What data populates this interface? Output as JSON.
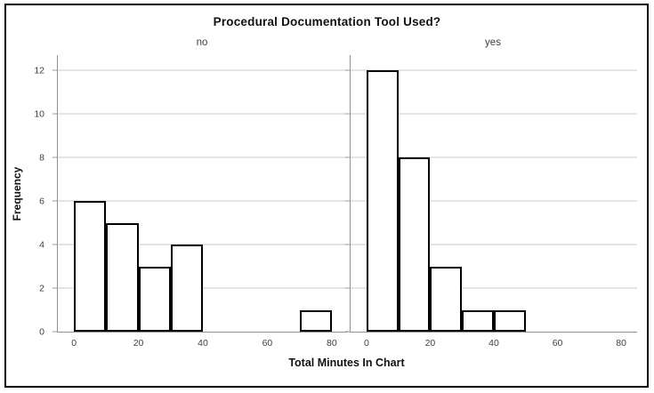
{
  "chart_data": {
    "type": "bar",
    "chart_kind": "faceted-histogram",
    "title": "Procedural Documentation Tool Used?",
    "xlabel": "Total Minutes In Chart",
    "ylabel": "Frequency",
    "x_ticks": [
      0,
      20,
      40,
      60,
      80
    ],
    "y_ticks": [
      0,
      2,
      4,
      6,
      8,
      10,
      12
    ],
    "xlim": [
      -5,
      85
    ],
    "ylim": [
      0,
      12.7
    ],
    "bin_width": 10,
    "grid": "horizontal",
    "legend_position": "none",
    "panels": [
      {
        "label": "no",
        "bars": [
          {
            "x0": 0,
            "x1": 10,
            "count": 6
          },
          {
            "x0": 10,
            "x1": 20,
            "count": 5
          },
          {
            "x0": 20,
            "x1": 30,
            "count": 3
          },
          {
            "x0": 30,
            "x1": 40,
            "count": 4
          },
          {
            "x0": 70,
            "x1": 80,
            "count": 1
          }
        ]
      },
      {
        "label": "yes",
        "bars": [
          {
            "x0": 0,
            "x1": 10,
            "count": 12
          },
          {
            "x0": 10,
            "x1": 20,
            "count": 8
          },
          {
            "x0": 20,
            "x1": 30,
            "count": 3
          },
          {
            "x0": 30,
            "x1": 40,
            "count": 1
          },
          {
            "x0": 40,
            "x1": 50,
            "count": 1
          }
        ]
      }
    ],
    "colors": {
      "bar_fill": "#ffffff",
      "bar_border": "#000000",
      "grid": "#c8c8c8",
      "axis": "#8f8f8f",
      "frame": "#000000",
      "text": "#111111",
      "tick_text": "#3f3f3f"
    }
  }
}
